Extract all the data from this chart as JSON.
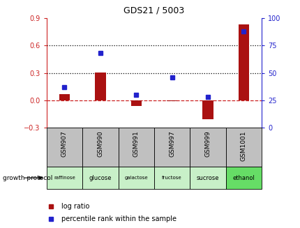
{
  "title": "GDS21 / 5003",
  "samples": [
    "GSM907",
    "GSM990",
    "GSM991",
    "GSM997",
    "GSM999",
    "GSM1001"
  ],
  "protocols": [
    "raffinose",
    "glucose",
    "galactose",
    "fructose",
    "sucrose",
    "ethanol"
  ],
  "log_ratios": [
    0.065,
    0.305,
    -0.06,
    -0.01,
    -0.21,
    0.83
  ],
  "percentile_ranks": [
    37,
    68,
    30,
    46,
    28,
    88
  ],
  "left_ylim": [
    -0.3,
    0.9
  ],
  "left_yticks": [
    -0.3,
    0.0,
    0.3,
    0.6,
    0.9
  ],
  "right_ylim": [
    0,
    100
  ],
  "right_yticks": [
    0,
    25,
    50,
    75,
    100
  ],
  "hlines": [
    0.3,
    0.6
  ],
  "bar_color": "#aa1111",
  "dot_color": "#2222cc",
  "zero_line_color": "#cc2222",
  "hline_color": "#000000",
  "protocol_colors": [
    "#c8f0c8",
    "#c8f0c8",
    "#c8f0c8",
    "#c8f0c8",
    "#c8f0c8",
    "#66dd66"
  ],
  "gsm_bg_color": "#c0c0c0",
  "legend_bar_label": "log ratio",
  "legend_dot_label": "percentile rank within the sample",
  "growth_protocol_label": "growth protocol",
  "title_color": "#000000",
  "left_tick_color": "#cc2222",
  "right_tick_color": "#2222cc"
}
